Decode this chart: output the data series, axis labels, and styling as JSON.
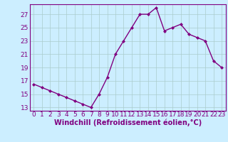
{
  "x": [
    0,
    1,
    2,
    3,
    4,
    5,
    6,
    7,
    8,
    9,
    10,
    11,
    12,
    13,
    14,
    15,
    16,
    17,
    18,
    19,
    20,
    21,
    22,
    23
  ],
  "y": [
    16.5,
    16.0,
    15.5,
    15.0,
    14.5,
    14.0,
    13.5,
    13.0,
    15.0,
    17.5,
    21.0,
    23.0,
    25.0,
    27.0,
    27.0,
    28.0,
    24.5,
    25.0,
    25.5,
    24.0,
    23.5,
    23.0,
    20.0,
    19.0
  ],
  "line_color": "#800080",
  "marker": "D",
  "marker_size": 2,
  "bg_color": "#cceeff",
  "grid_color": "#aacccc",
  "xlabel": "Windchill (Refroidissement éolien,°C)",
  "xlim_min": -0.5,
  "xlim_max": 23.5,
  "ylim_min": 12.5,
  "ylim_max": 28.5,
  "yticks": [
    13,
    15,
    17,
    19,
    21,
    23,
    25,
    27
  ],
  "xticks": [
    0,
    1,
    2,
    3,
    4,
    5,
    6,
    7,
    8,
    9,
    10,
    11,
    12,
    13,
    14,
    15,
    16,
    17,
    18,
    19,
    20,
    21,
    22,
    23
  ],
  "font_color": "#800080",
  "font_size": 6.5,
  "xlabel_fontsize": 7,
  "linewidth": 1.0
}
